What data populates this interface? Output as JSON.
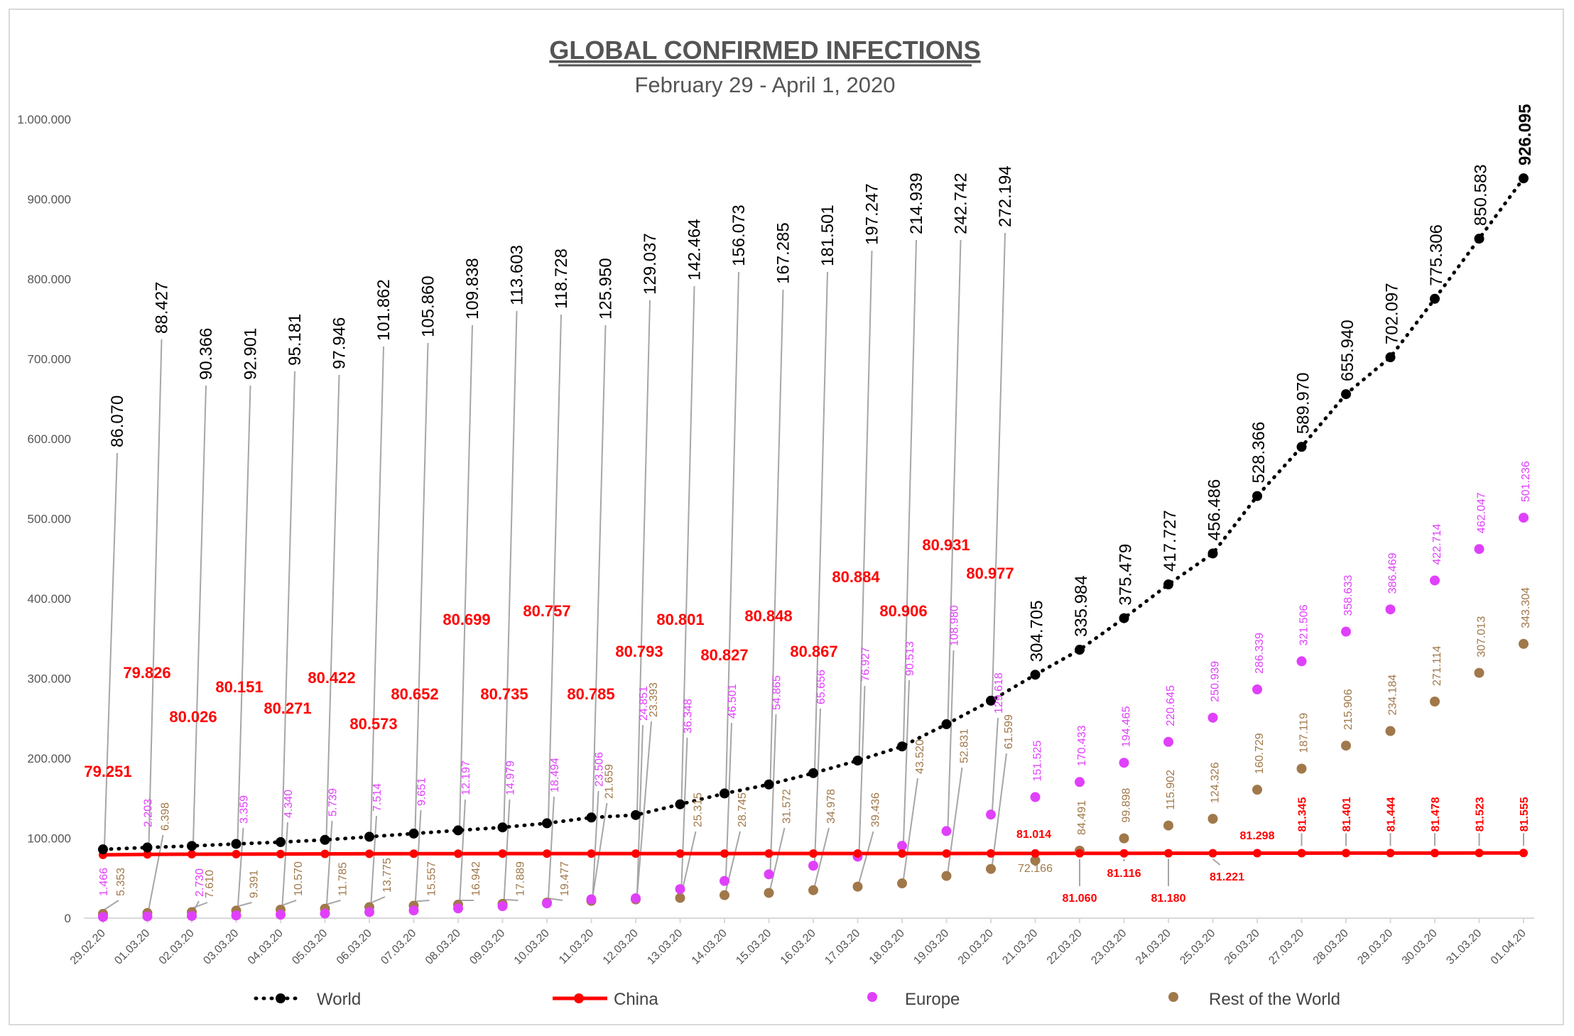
{
  "chart_data": {
    "type": "line",
    "title": "GLOBAL CONFIRMED INFECTIONS",
    "subtitle": "February 29 - April 1, 2020",
    "xlabel": "",
    "ylabel": "",
    "ylim": [
      0,
      1000000
    ],
    "y_ticks": [
      "0",
      "100.000",
      "200.000",
      "300.000",
      "400.000",
      "500.000",
      "600.000",
      "700.000",
      "800.000",
      "900.000",
      "1.000.000"
    ],
    "grid": false,
    "legend_position": "bottom",
    "categories": [
      "29.02.20",
      "01.03.20",
      "02.03.20",
      "03.03.20",
      "04.03.20",
      "05.03.20",
      "06.03.20",
      "07.03.20",
      "08.03.20",
      "09.03.20",
      "10.03.20",
      "11.03.20",
      "12.03.20",
      "13.03.20",
      "14.03.20",
      "15.03.20",
      "16.03.20",
      "17.03.20",
      "18.03.20",
      "19.03.20",
      "20.03.20",
      "21.03.20",
      "22.03.20",
      "23.03.20",
      "24.03.20",
      "25.03.20",
      "26.03.20",
      "27.03.20",
      "28.03.20",
      "29.03.20",
      "30.03.20",
      "31.03.20",
      "01.04.20"
    ],
    "series": [
      {
        "name": "World",
        "color": "#000000",
        "style": "dotted-line-markers",
        "values": [
          86070,
          88427,
          90366,
          92901,
          95181,
          97946,
          101862,
          105860,
          109838,
          113603,
          118728,
          125950,
          129037,
          142464,
          156073,
          167285,
          181501,
          197247,
          214939,
          242742,
          272194,
          304705,
          335984,
          375479,
          417727,
          456486,
          528366,
          589970,
          655940,
          702097,
          775306,
          850583,
          926095
        ],
        "labels": [
          "86.070",
          "88.427",
          "90.366",
          "92.901",
          "95.181",
          "97.946",
          "101.862",
          "105.860",
          "109.838",
          "113.603",
          "118.728",
          "125.950",
          "129.037",
          "142.464",
          "156.073",
          "167.285",
          "181.501",
          "197.247",
          "214.939",
          "242.742",
          "272.194",
          "304.705",
          "335.984",
          "375.479",
          "417.727",
          "456.486",
          "528.366",
          "589.970",
          "655.940",
          "702.097",
          "775.306",
          "850.583",
          "926.095"
        ]
      },
      {
        "name": "China",
        "color": "#ff0000",
        "style": "solid-line",
        "values": [
          79251,
          79826,
          80026,
          80151,
          80271,
          80422,
          80573,
          80652,
          80699,
          80735,
          80757,
          80785,
          80793,
          80801,
          80827,
          80848,
          80867,
          80884,
          80906,
          80931,
          80977,
          81014,
          81060,
          81116,
          81180,
          81221,
          81298,
          81345,
          81401,
          81444,
          81478,
          81523,
          81555
        ],
        "labels": [
          "79.251",
          "79.826",
          "80.026",
          "80.151",
          "80.271",
          "80.422",
          "80.573",
          "80.652",
          "80.699",
          "80.735",
          "80.757",
          "80.785",
          "80.793",
          "80.801",
          "80.827",
          "80.848",
          "80.867",
          "80.884",
          "80.906",
          "80.931",
          "80.977",
          "81.014",
          "81.060",
          "81.116",
          "81.180",
          "81.221",
          "81.298",
          "81.345",
          "81.401",
          "81.444",
          "81.478",
          "81.523",
          "81.555"
        ]
      },
      {
        "name": "Europe",
        "color": "#e040fb",
        "style": "markers",
        "values": [
          1466,
          2203,
          2730,
          3359,
          4340,
          5739,
          7514,
          9651,
          12197,
          14979,
          18494,
          23506,
          24851,
          36348,
          46501,
          54865,
          65656,
          76927,
          90513,
          108980,
          129618,
          151525,
          170433,
          194465,
          220645,
          250939,
          286339,
          321506,
          358633,
          386469,
          422714,
          462047,
          501236
        ],
        "labels": [
          "1.466",
          "2.203",
          "2.730",
          "3.359",
          "4.340",
          "5.739",
          "7.514",
          "9.651",
          "12.197",
          "14.979",
          "18.494",
          "23.506",
          "24.851",
          "36.348",
          "46.501",
          "54.865",
          "65.656",
          "76.927",
          "90.513",
          "108.980",
          "129.618",
          "151.525",
          "170.433",
          "194.465",
          "220.645",
          "250.939",
          "286.339",
          "321.506",
          "358.633",
          "386.469",
          "422.714",
          "462.047",
          "501.236"
        ]
      },
      {
        "name": "Rest of the World",
        "color": "#a0784a",
        "style": "markers",
        "values": [
          5353,
          6398,
          7610,
          9391,
          10570,
          11785,
          13775,
          15557,
          16942,
          17889,
          19477,
          21659,
          23393,
          25315,
          28745,
          31572,
          34978,
          39436,
          43520,
          52831,
          61599,
          72166,
          84491,
          99898,
          115902,
          124326,
          160729,
          187119,
          215906,
          234184,
          271114,
          307013,
          343304
        ],
        "labels": [
          "5.353",
          "6.398",
          "7.610",
          "9.391",
          "10.570",
          "11.785",
          "13.775",
          "15.557",
          "16.942",
          "17.889",
          "19.477",
          "21.659",
          "23.393",
          "25.315",
          "28.745",
          "31.572",
          "34.978",
          "39.436",
          "43.520",
          "52.831",
          "61.599",
          "72.166",
          "84.491",
          "99.898",
          "115.902",
          "124.326",
          "160.729",
          "187.119",
          "215.906",
          "234.184",
          "271.114",
          "307.013",
          "343.304"
        ]
      }
    ]
  }
}
